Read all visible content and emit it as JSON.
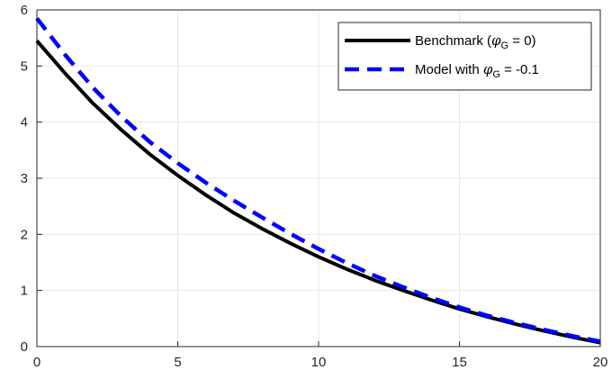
{
  "chart_data": {
    "type": "line",
    "title": "",
    "xlabel": "",
    "ylabel": "",
    "xlim": [
      0,
      20
    ],
    "ylim": [
      0,
      6
    ],
    "xticks": [
      0,
      5,
      10,
      15,
      20
    ],
    "yticks": [
      0,
      1,
      2,
      3,
      4,
      5,
      6
    ],
    "grid": true,
    "legend_position": "top-right",
    "x": [
      0,
      1,
      2,
      3,
      4,
      5,
      6,
      7,
      8,
      9,
      10,
      11,
      12,
      13,
      14,
      15,
      16,
      17,
      18,
      19,
      20
    ],
    "series": [
      {
        "legend": {
          "prefix": "Benchmark (",
          "symbol": "φ",
          "subscript": "G",
          "suffix": " = 0)"
        },
        "color": "#000000",
        "style": "solid",
        "values": [
          5.45,
          4.87,
          4.33,
          3.86,
          3.43,
          3.05,
          2.7,
          2.38,
          2.1,
          1.84,
          1.6,
          1.38,
          1.18,
          1.0,
          0.83,
          0.67,
          0.53,
          0.4,
          0.28,
          0.17,
          0.07
        ]
      },
      {
        "legend": {
          "prefix": "Model with ",
          "symbol": "φ",
          "subscript": "G",
          "suffix": " = -0.1"
        },
        "color": "#0000ff",
        "style": "dashed",
        "values": [
          5.85,
          5.2,
          4.61,
          4.1,
          3.65,
          3.27,
          2.92,
          2.6,
          2.3,
          2.01,
          1.74,
          1.49,
          1.26,
          1.06,
          0.87,
          0.7,
          0.55,
          0.42,
          0.3,
          0.19,
          0.09
        ]
      }
    ]
  }
}
